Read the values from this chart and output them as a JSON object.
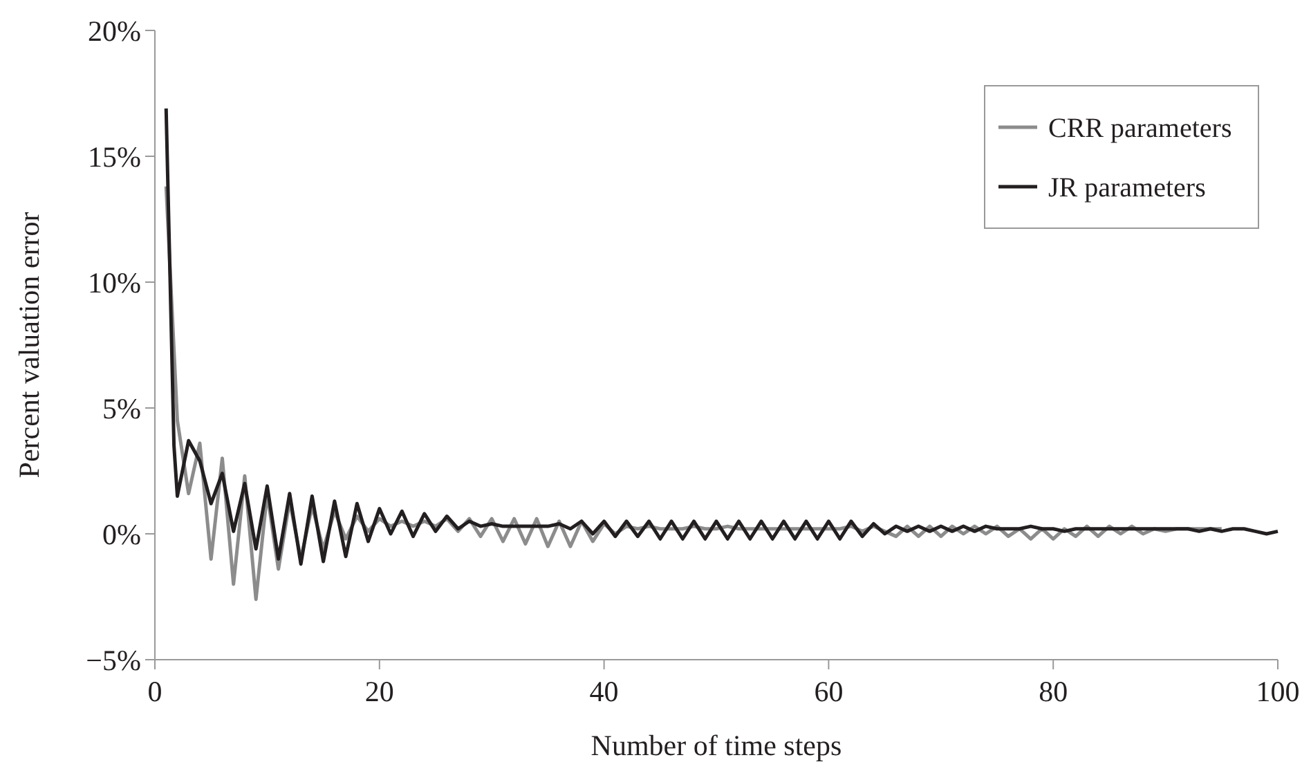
{
  "chart_data": {
    "type": "line",
    "xlabel": "Number of time steps",
    "ylabel": "Percent valuation error",
    "xlim": [
      0,
      100
    ],
    "xticks": [
      0,
      20,
      40,
      60,
      80,
      100
    ],
    "ylim": [
      -5,
      20
    ],
    "yticks": [
      {
        "value": -5,
        "label": "−5%"
      },
      {
        "value": 0,
        "label": "0%"
      },
      {
        "value": 5,
        "label": "5%"
      },
      {
        "value": 10,
        "label": "10%"
      },
      {
        "value": 15,
        "label": "15%"
      },
      {
        "value": 20,
        "label": "20%"
      }
    ],
    "legend": "top right",
    "grid": false,
    "line_style": "solid",
    "marker": "none",
    "series": [
      {
        "name": "CRR parameters",
        "color": "#8c8c8c",
        "x": [
          1,
          2,
          3,
          4,
          5,
          6,
          7,
          8,
          9,
          10,
          11,
          12,
          13,
          14,
          15,
          16,
          17,
          18,
          19,
          20,
          21,
          22,
          23,
          24,
          25,
          26,
          27,
          28,
          29,
          30,
          31,
          32,
          33,
          34,
          35,
          36,
          37,
          38,
          39,
          40,
          41,
          42,
          43,
          44,
          45,
          46,
          47,
          48,
          49,
          50,
          51,
          52,
          53,
          54,
          55,
          56,
          57,
          58,
          59,
          60,
          61,
          62,
          63,
          64,
          65,
          66,
          67,
          68,
          69,
          70,
          71,
          72,
          73,
          74,
          75,
          76,
          77,
          78,
          79,
          80,
          81,
          82,
          83,
          84,
          85,
          86,
          87,
          88,
          89,
          90,
          91,
          92,
          93,
          94,
          95
        ],
        "values": [
          13.8,
          4.5,
          1.6,
          3.6,
          -1.0,
          3.0,
          -2.0,
          2.3,
          -2.6,
          1.6,
          -1.4,
          1.3,
          -1.0,
          1.1,
          -0.6,
          0.9,
          -0.2,
          0.7,
          0.1,
          0.6,
          0.3,
          0.5,
          0.3,
          0.5,
          0.3,
          0.6,
          0.1,
          0.6,
          -0.1,
          0.6,
          -0.3,
          0.6,
          -0.4,
          0.6,
          -0.5,
          0.5,
          -0.5,
          0.5,
          -0.3,
          0.4,
          0.0,
          0.3,
          0.2,
          0.3,
          0.2,
          0.2,
          0.2,
          0.3,
          0.2,
          0.2,
          0.3,
          0.2,
          0.2,
          0.2,
          0.2,
          0.2,
          0.2,
          0.2,
          0.2,
          0.2,
          0.2,
          0.3,
          0.1,
          0.3,
          0.1,
          -0.1,
          0.3,
          -0.1,
          0.3,
          -0.1,
          0.3,
          0.0,
          0.3,
          0.0,
          0.3,
          -0.1,
          0.2,
          -0.2,
          0.2,
          -0.2,
          0.2,
          -0.1,
          0.3,
          -0.1,
          0.3,
          0.0,
          0.3,
          0.0,
          0.2,
          0.1,
          0.2,
          0.2,
          0.2,
          0.2,
          0.2
        ]
      },
      {
        "name": "JR parameters",
        "color": "#231f20",
        "x": [
          1,
          1.7,
          2,
          3,
          4,
          5,
          6,
          7,
          8,
          9,
          10,
          11,
          12,
          13,
          14,
          15,
          16,
          17,
          18,
          19,
          20,
          21,
          22,
          23,
          24,
          25,
          26,
          27,
          28,
          29,
          30,
          31,
          32,
          33,
          34,
          35,
          36,
          37,
          38,
          39,
          40,
          41,
          42,
          43,
          44,
          45,
          46,
          47,
          48,
          49,
          50,
          51,
          52,
          53,
          54,
          55,
          56,
          57,
          58,
          59,
          60,
          61,
          62,
          63,
          64,
          65,
          66,
          67,
          68,
          69,
          70,
          71,
          72,
          73,
          74,
          75,
          76,
          77,
          78,
          79,
          80,
          81,
          82,
          83,
          84,
          85,
          86,
          87,
          88,
          89,
          90,
          91,
          92,
          93,
          94,
          95,
          96,
          97,
          98,
          99,
          100
        ],
        "values": [
          16.9,
          3.5,
          1.5,
          3.7,
          2.9,
          1.2,
          2.4,
          0.1,
          2.0,
          -0.6,
          1.9,
          -1.0,
          1.6,
          -1.2,
          1.5,
          -1.1,
          1.3,
          -0.9,
          1.2,
          -0.3,
          1.0,
          0.0,
          0.9,
          -0.1,
          0.8,
          0.1,
          0.7,
          0.2,
          0.5,
          0.3,
          0.4,
          0.3,
          0.3,
          0.3,
          0.3,
          0.3,
          0.4,
          0.2,
          0.5,
          0.0,
          0.5,
          -0.1,
          0.5,
          -0.1,
          0.5,
          -0.2,
          0.5,
          -0.2,
          0.5,
          -0.2,
          0.5,
          -0.2,
          0.5,
          -0.2,
          0.5,
          -0.2,
          0.5,
          -0.2,
          0.5,
          -0.2,
          0.5,
          -0.2,
          0.5,
          -0.1,
          0.4,
          0.0,
          0.3,
          0.1,
          0.3,
          0.1,
          0.3,
          0.1,
          0.3,
          0.1,
          0.3,
          0.2,
          0.2,
          0.2,
          0.3,
          0.2,
          0.2,
          0.1,
          0.2,
          0.2,
          0.2,
          0.2,
          0.2,
          0.2,
          0.2,
          0.2,
          0.2,
          0.2,
          0.2,
          0.1,
          0.2,
          0.1,
          0.2,
          0.2,
          0.1,
          0.0,
          0.1
        ]
      }
    ]
  }
}
